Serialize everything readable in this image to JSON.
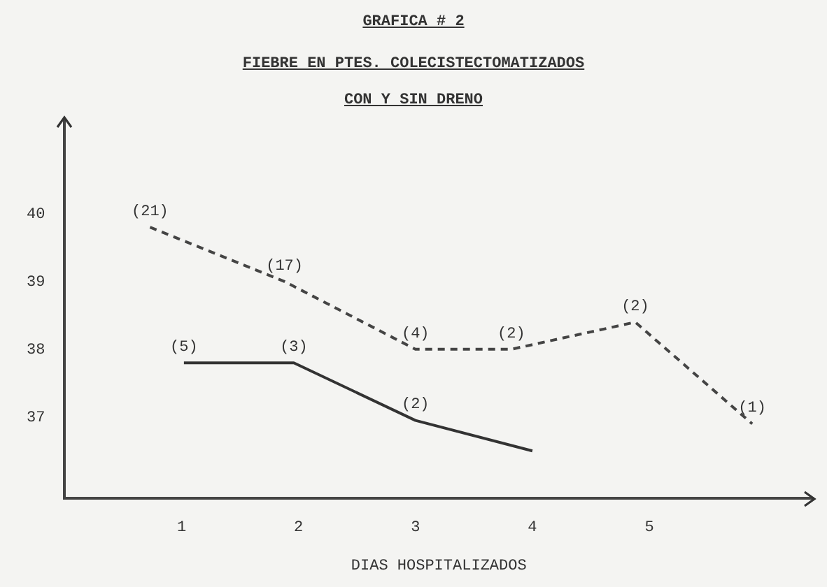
{
  "chart_data": {
    "type": "line",
    "title": "FIEBRE EN PTES. COLECISTECTOMATIZADOS",
    "subtitle": "CON Y SIN DRENO",
    "xlabel": "DIAS HOSPITALIZADOS",
    "annotations": [
      "GRAFICA # 2",
      {
        "text": "(21)",
        "x": 0.73,
        "y": 39.8
      },
      {
        "text": "(17)",
        "x": 1.88,
        "y": 39.0
      },
      {
        "text": "(4)",
        "x": 3,
        "y": 38.0
      },
      {
        "text": "(2)",
        "x": 3.82,
        "y": 38.0
      },
      {
        "text": "(2)",
        "x": 4.88,
        "y": 38.4
      },
      {
        "text": "(1)",
        "x": 5.88,
        "y": 36.9
      },
      {
        "text": "(5)",
        "x": 1.02,
        "y": 37.8
      },
      {
        "text": "(3)",
        "x": 1.96,
        "y": 37.8
      },
      {
        "text": "(2)",
        "x": 3,
        "y": 36.95
      }
    ],
    "xlim": [
      0,
      6.4
    ],
    "xticks": [
      1,
      2,
      3,
      4,
      5
    ],
    "ylim": [
      35.8,
      41.4
    ],
    "yticks": [
      37,
      38,
      39,
      40
    ],
    "grid": false,
    "legend": false,
    "marker": "none",
    "series": [
      {
        "color": "#444444",
        "line_style": "dashed",
        "x": [
          0.73,
          1.88,
          3,
          3.82,
          4.88,
          5.88
        ],
        "values": [
          39.8,
          39.0,
          38.0,
          38.0,
          38.4,
          36.9
        ]
      },
      {
        "color": "#333333",
        "line_style": "solid",
        "x": [
          1.02,
          1.96,
          3,
          4
        ],
        "values": [
          37.8,
          37.8,
          36.95,
          36.5
        ]
      }
    ]
  }
}
